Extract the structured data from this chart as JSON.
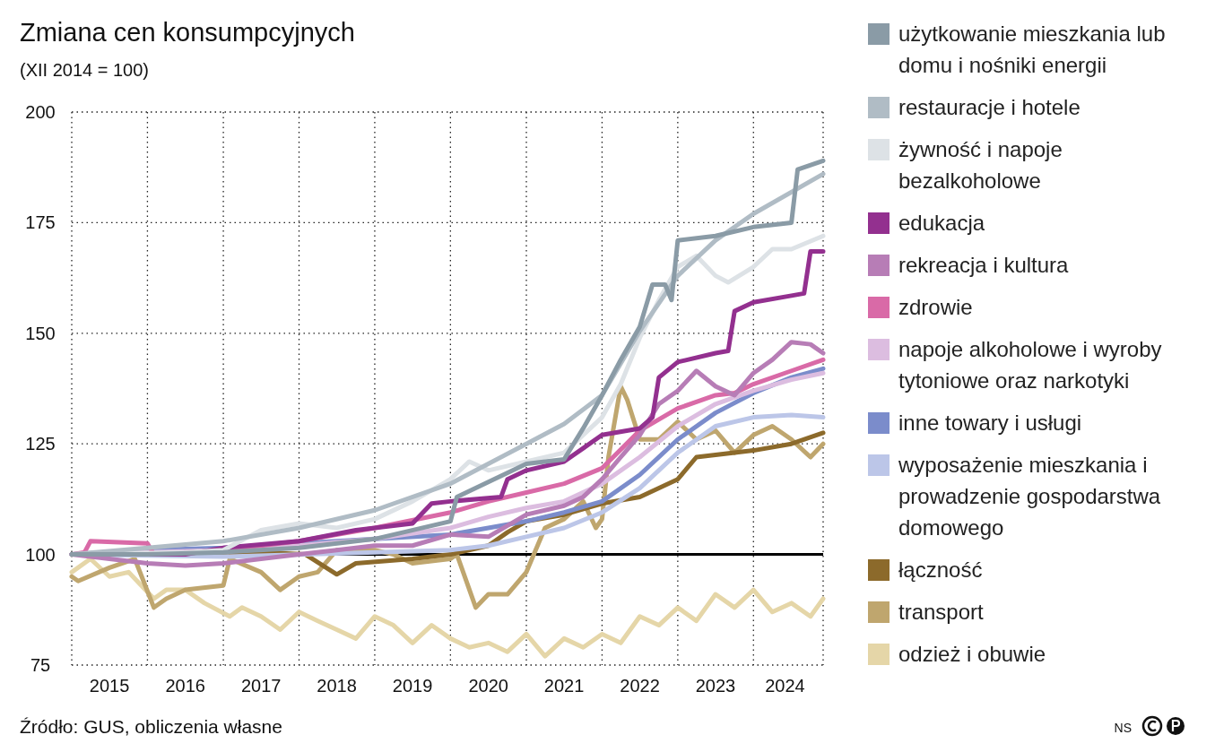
{
  "chart_data": {
    "type": "line",
    "title": "Zmiana cen konsumpcyjnych",
    "subtitle": "(XII 2014 = 100)",
    "xlim": [
      "2014-12",
      "2024-11"
    ],
    "xticks": [
      {
        "value": "2014-12",
        "label": null
      },
      {
        "value": "2015-06",
        "label": "2015"
      },
      {
        "value": "2015-12",
        "label": null
      },
      {
        "value": "2016-06",
        "label": "2016"
      },
      {
        "value": "2016-12",
        "label": null
      },
      {
        "value": "2017-06",
        "label": "2017"
      },
      {
        "value": "2017-12",
        "label": null
      },
      {
        "value": "2018-06",
        "label": "2018"
      },
      {
        "value": "2018-12",
        "label": null
      },
      {
        "value": "2019-06",
        "label": "2019"
      },
      {
        "value": "2019-12",
        "label": null
      },
      {
        "value": "2020-06",
        "label": "2020"
      },
      {
        "value": "2020-12",
        "label": null
      },
      {
        "value": "2021-06",
        "label": "2021"
      },
      {
        "value": "2021-12",
        "label": null
      },
      {
        "value": "2022-06",
        "label": "2022"
      },
      {
        "value": "2022-12",
        "label": null
      },
      {
        "value": "2023-06",
        "label": "2023"
      },
      {
        "value": "2023-12",
        "label": null
      },
      {
        "value": "2024-05",
        "label": "2024"
      },
      {
        "value": "2024-11",
        "label": null
      }
    ],
    "ylim": [
      75,
      200
    ],
    "yticks": [
      75,
      100,
      125,
      150,
      175,
      200
    ],
    "grid": true,
    "legend": "right",
    "line_style": "solid",
    "marker": "none",
    "ref_lines": [
      {
        "axis": "y",
        "value": 100,
        "color": "#000000"
      }
    ],
    "annotations": [
      "Źródło: GUS, obliczenia własne",
      "NS"
    ],
    "series": [
      {
        "name": "użytkowanie mieszkania lub domu i nośniki energii",
        "color": "#8a9ba6",
        "x": [
          "2014-12",
          "2015-12",
          "2016-12",
          "2017-12",
          "2018-12",
          "2019-12",
          "2020-01",
          "2020-12",
          "2021-06",
          "2021-09",
          "2021-12",
          "2022-03",
          "2022-06",
          "2022-08",
          "2022-10",
          "2022-11",
          "2022-12",
          "2023-06",
          "2023-12",
          "2024-06",
          "2024-07",
          "2024-11"
        ],
        "values": [
          100,
          100,
          100.5,
          101.5,
          103.5,
          107.5,
          113,
          120.5,
          121.5,
          128.5,
          136,
          144,
          151.5,
          161,
          161,
          157.5,
          171,
          172,
          174,
          175,
          187,
          189
        ]
      },
      {
        "name": "restauracje i hotele",
        "color": "#b0bcc5",
        "x": [
          "2014-12",
          "2015-12",
          "2016-12",
          "2017-12",
          "2018-12",
          "2019-12",
          "2020-12",
          "2021-06",
          "2021-12",
          "2022-06",
          "2022-12",
          "2023-06",
          "2023-12",
          "2024-11"
        ],
        "values": [
          100,
          101.5,
          103,
          106,
          110,
          116,
          125,
          129.5,
          136,
          150.5,
          163,
          171,
          177,
          186
        ]
      },
      {
        "name": "żywność i napoje bezalkoholowe",
        "color": "#dde2e6",
        "x": [
          "2014-12",
          "2016-06",
          "2016-12",
          "2017-06",
          "2017-12",
          "2018-06",
          "2018-12",
          "2019-06",
          "2019-12",
          "2020-03",
          "2020-06",
          "2020-12",
          "2021-06",
          "2021-12",
          "2022-03",
          "2022-06",
          "2022-09",
          "2022-12",
          "2023-03",
          "2023-06",
          "2023-08",
          "2023-12",
          "2024-03",
          "2024-06",
          "2024-11"
        ],
        "values": [
          100,
          100.5,
          101,
          105.5,
          107,
          106,
          108,
          112,
          117,
          121,
          119,
          121,
          123,
          131,
          138.5,
          149,
          157.5,
          165,
          167.5,
          163,
          161.5,
          165,
          169,
          169,
          172
        ]
      },
      {
        "name": "edukacja",
        "color": "#93308f",
        "x": [
          "2014-12",
          "2016-06",
          "2016-12",
          "2017-12",
          "2018-09",
          "2019-06",
          "2019-09",
          "2019-12",
          "2020-08",
          "2020-09",
          "2020-12",
          "2021-06",
          "2021-09",
          "2021-12",
          "2022-06",
          "2022-08",
          "2022-09",
          "2022-12",
          "2023-06",
          "2023-08",
          "2023-09",
          "2023-12",
          "2024-06",
          "2024-08",
          "2024-09",
          "2024-11"
        ],
        "values": [
          100,
          100,
          101.5,
          103,
          105.5,
          107,
          111.5,
          112,
          113,
          117,
          119,
          121,
          124,
          127,
          128.5,
          131,
          140,
          143.5,
          145.5,
          146,
          155,
          157,
          158.5,
          159,
          168.5,
          168.5
        ]
      },
      {
        "name": "rekreacja i kultura",
        "color": "#b77db6",
        "x": [
          "2014-12",
          "2015-06",
          "2015-12",
          "2016-06",
          "2016-12",
          "2017-06",
          "2017-12",
          "2018-06",
          "2018-12",
          "2019-06",
          "2019-12",
          "2020-06",
          "2020-12",
          "2021-06",
          "2021-09",
          "2021-12",
          "2022-03",
          "2022-06",
          "2022-09",
          "2022-12",
          "2023-03",
          "2023-06",
          "2023-09",
          "2023-12",
          "2024-03",
          "2024-06",
          "2024-09",
          "2024-11"
        ],
        "values": [
          100,
          99,
          98,
          97.5,
          98,
          99,
          100,
          101,
          102,
          102,
          104.5,
          104,
          109,
          111,
          113,
          117,
          122,
          127,
          134,
          137,
          141.5,
          138,
          136,
          141,
          144,
          148,
          147.5,
          145.5
        ]
      },
      {
        "name": "zdrowie",
        "color": "#d96aa7",
        "x": [
          "2014-12",
          "2015-02",
          "2015-03",
          "2015-12",
          "2016-01",
          "2016-12",
          "2017-12",
          "2018-12",
          "2019-12",
          "2020-06",
          "2020-12",
          "2021-06",
          "2021-12",
          "2022-06",
          "2022-12",
          "2023-03",
          "2023-06",
          "2023-09",
          "2023-12",
          "2024-06",
          "2024-11"
        ],
        "values": [
          100,
          100.5,
          103,
          102.5,
          100,
          101,
          103,
          106,
          109.5,
          112,
          114,
          116,
          119.5,
          128,
          133,
          134.5,
          136,
          136.5,
          138.5,
          141.5,
          144
        ]
      },
      {
        "name": "napoje alkoholowe i wyroby tytoniowe oraz narkotyki",
        "color": "#dcbde0",
        "x": [
          "2014-12",
          "2015-12",
          "2016-12",
          "2017-12",
          "2018-12",
          "2019-12",
          "2020-06",
          "2020-12",
          "2021-06",
          "2021-12",
          "2022-06",
          "2022-12",
          "2023-06",
          "2023-12",
          "2024-06",
          "2024-11"
        ],
        "values": [
          100,
          100.5,
          101,
          102,
          103.5,
          106,
          108.5,
          110.5,
          112,
          116,
          122,
          129,
          134,
          137,
          139.5,
          141
        ]
      },
      {
        "name": "inne towary i usługi",
        "color": "#7b8ccb",
        "x": [
          "2014-12",
          "2015-12",
          "2016-12",
          "2017-12",
          "2018-12",
          "2019-12",
          "2020-06",
          "2020-12",
          "2021-06",
          "2021-12",
          "2022-06",
          "2022-12",
          "2023-06",
          "2023-12",
          "2024-06",
          "2024-11"
        ],
        "values": [
          100,
          101,
          101.5,
          102.5,
          103.5,
          104.5,
          106,
          107.5,
          109.5,
          112,
          118,
          126,
          132,
          136.5,
          140,
          142
        ]
      },
      {
        "name": "wyposażenie mieszkania i prowadzenie gospodarstwa domowego",
        "color": "#bcc6e8",
        "x": [
          "2014-12",
          "2016-12",
          "2018-12",
          "2019-12",
          "2020-06",
          "2020-12",
          "2021-06",
          "2021-12",
          "2022-06",
          "2022-12",
          "2023-06",
          "2023-12",
          "2024-06",
          "2024-11"
        ],
        "values": [
          100,
          99.5,
          100.5,
          101,
          102,
          104,
          106,
          109.5,
          115,
          123,
          129,
          131,
          131.5,
          131
        ]
      },
      {
        "name": "łączność",
        "color": "#8c6a2b",
        "x": [
          "2014-12",
          "2016-06",
          "2017-06",
          "2018-01",
          "2018-06",
          "2018-09",
          "2019-06",
          "2019-12",
          "2020-06",
          "2020-09",
          "2020-12",
          "2021-06",
          "2021-12",
          "2022-06",
          "2022-12",
          "2023-03",
          "2023-06",
          "2023-12",
          "2024-06",
          "2024-11"
        ],
        "values": [
          100,
          100,
          100.5,
          100,
          95.5,
          98,
          99,
          100,
          102,
          105,
          107.5,
          109,
          111.5,
          113,
          117,
          122,
          122.5,
          123.5,
          125,
          127.5
        ]
      },
      {
        "name": "transport",
        "color": "#bfa66e",
        "x": [
          "2014-12",
          "2015-01",
          "2015-06",
          "2015-10",
          "2016-01",
          "2016-03",
          "2016-06",
          "2016-12",
          "2017-01",
          "2017-06",
          "2017-09",
          "2017-12",
          "2018-03",
          "2018-06",
          "2018-12",
          "2019-03",
          "2019-06",
          "2019-12",
          "2020-01",
          "2020-04",
          "2020-06",
          "2020-09",
          "2020-12",
          "2021-03",
          "2021-06",
          "2021-09",
          "2021-11",
          "2021-12",
          "2022-01",
          "2022-03",
          "2022-04",
          "2022-06",
          "2022-09",
          "2022-12",
          "2023-03",
          "2023-06",
          "2023-09",
          "2023-12",
          "2024-03",
          "2024-06",
          "2024-09",
          "2024-11"
        ],
        "values": [
          95,
          94,
          97,
          99,
          88,
          90,
          92,
          93,
          99,
          96,
          92,
          95,
          96,
          101,
          101,
          100,
          98,
          99,
          100,
          88,
          91,
          91,
          96,
          106,
          108,
          112,
          106,
          108,
          122,
          138,
          135,
          126,
          126,
          130,
          126,
          128,
          123,
          127,
          129,
          126,
          122,
          125
        ]
      },
      {
        "name": "odzież i obuwie",
        "color": "#e5d6a8",
        "x": [
          "2014-12",
          "2015-03",
          "2015-06",
          "2015-09",
          "2016-01",
          "2016-03",
          "2016-06",
          "2016-09",
          "2017-01",
          "2017-03",
          "2017-06",
          "2017-09",
          "2017-12",
          "2018-03",
          "2018-06",
          "2018-09",
          "2018-12",
          "2019-03",
          "2019-06",
          "2019-09",
          "2019-12",
          "2020-03",
          "2020-06",
          "2020-09",
          "2020-12",
          "2021-03",
          "2021-06",
          "2021-09",
          "2021-12",
          "2022-03",
          "2022-06",
          "2022-09",
          "2022-12",
          "2023-03",
          "2023-06",
          "2023-09",
          "2023-12",
          "2024-03",
          "2024-06",
          "2024-09",
          "2024-11"
        ],
        "values": [
          96,
          99,
          95,
          96,
          90,
          92,
          92,
          89,
          86,
          88,
          86,
          83,
          87,
          85,
          83,
          81,
          86,
          84,
          80,
          84,
          81,
          79,
          80,
          78,
          82,
          77,
          81,
          79,
          82,
          80,
          86,
          84,
          88,
          85,
          91,
          88,
          92,
          87,
          89,
          86,
          90
        ]
      }
    ]
  }
}
